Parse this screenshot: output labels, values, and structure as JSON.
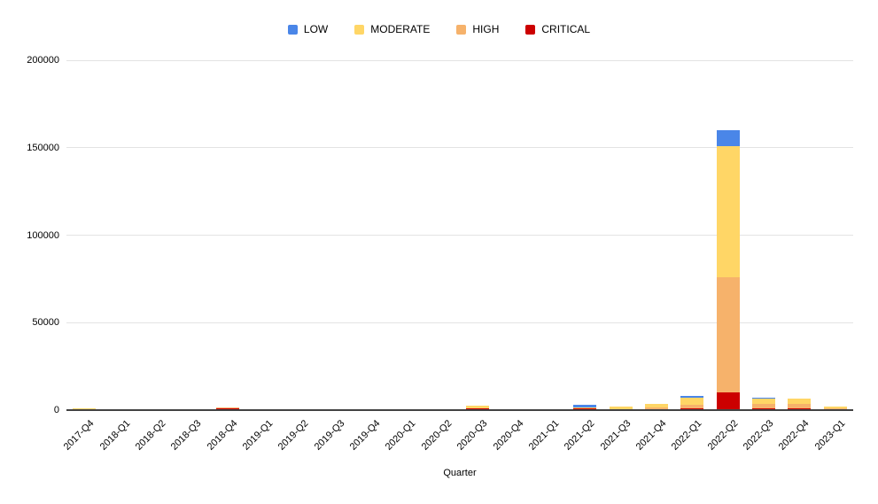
{
  "chart_data": {
    "type": "bar",
    "stacked": true,
    "title": "",
    "xlabel": "Quarter",
    "ylabel": "",
    "ylim": [
      0,
      200000
    ],
    "yticks": [
      0,
      50000,
      100000,
      150000,
      200000
    ],
    "legend_position": "top",
    "grid": true,
    "categories": [
      "2017-Q4",
      "2018-Q1",
      "2018-Q2",
      "2018-Q3",
      "2018-Q4",
      "2019-Q1",
      "2019-Q2",
      "2019-Q3",
      "2019-Q4",
      "2020-Q1",
      "2020-Q2",
      "2020-Q3",
      "2020-Q4",
      "2021-Q1",
      "2021-Q2",
      "2021-Q3",
      "2021-Q4",
      "2022-Q1",
      "2022-Q2",
      "2022-Q3",
      "2022-Q4",
      "2023-Q1"
    ],
    "series": [
      {
        "name": "LOW",
        "color": "#4a86e8",
        "values": [
          0,
          0,
          0,
          0,
          0,
          0,
          0,
          0,
          0,
          0,
          0,
          0,
          0,
          0,
          1600,
          0,
          0,
          1000,
          9000,
          650,
          0,
          0
        ]
      },
      {
        "name": "MODERATE",
        "color": "#ffd666",
        "values": [
          200,
          0,
          0,
          100,
          100,
          0,
          0,
          0,
          0,
          100,
          0,
          1300,
          100,
          100,
          300,
          1500,
          2100,
          3900,
          75000,
          3000,
          3100,
          1000
        ]
      },
      {
        "name": "HIGH",
        "color": "#f6b26b",
        "values": [
          600,
          100,
          100,
          500,
          400,
          500,
          400,
          400,
          400,
          400,
          500,
          300,
          300,
          400,
          200,
          200,
          800,
          2400,
          66000,
          2700,
          2500,
          100
        ]
      },
      {
        "name": "CRITICAL",
        "color": "#cc0000",
        "values": [
          100,
          0,
          0,
          0,
          900,
          0,
          0,
          0,
          0,
          0,
          100,
          800,
          0,
          0,
          800,
          500,
          700,
          800,
          10000,
          1000,
          800,
          700
        ]
      }
    ],
    "colors": {
      "axis_line": "#424242",
      "gridline": "#e3e3e3",
      "text": "#000000",
      "background": "#ffffff"
    }
  }
}
